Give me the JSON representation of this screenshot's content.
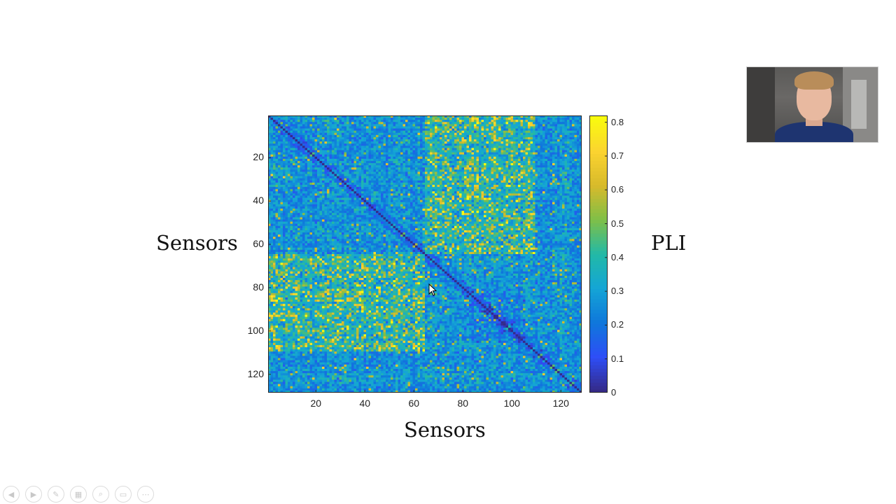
{
  "slide": {
    "ylabel": "Sensors",
    "xlabel": "Sensors",
    "colorbar_label": "PLI"
  },
  "chart_data": {
    "type": "heatmap",
    "title": "",
    "xlabel": "Sensors",
    "ylabel": "Sensors",
    "colorbar_label": "PLI",
    "n": 128,
    "xlim": [
      1,
      128
    ],
    "ylim": [
      1,
      128
    ],
    "x_ticks": [
      20,
      40,
      60,
      80,
      100,
      120
    ],
    "y_ticks": [
      20,
      40,
      60,
      80,
      100,
      120
    ],
    "color_range": [
      0,
      0.82
    ],
    "colorbar_ticks": [
      0,
      0.1,
      0.2,
      0.3,
      0.4,
      0.5,
      0.6,
      0.7,
      0.8
    ],
    "colormap": "parula",
    "colormap_stops": [
      "#352a87",
      "#2e4ef7",
      "#0f77db",
      "#14a5d6",
      "#22b9a7",
      "#7ebf48",
      "#d7ba2b",
      "#fbd330",
      "#f9fb0e"
    ],
    "diagonal_value": 0,
    "matrix_values": "symmetric 128x128 phase lag index matrix; mostly 0.1-0.35, higher (0.5-0.8) bands for sensors ~64-108 and ~82-104 clusters"
  },
  "toolbar": {
    "icons": [
      "prev-icon",
      "play-icon",
      "pen-icon",
      "slides-icon",
      "zoom-icon",
      "subtitle-icon",
      "more-icon"
    ],
    "glyphs": [
      "◀",
      "▶",
      "✎",
      "▦",
      "⌕",
      "▭",
      "⋯"
    ]
  },
  "webcam": {
    "description_icon": "presenter-video-icon"
  }
}
